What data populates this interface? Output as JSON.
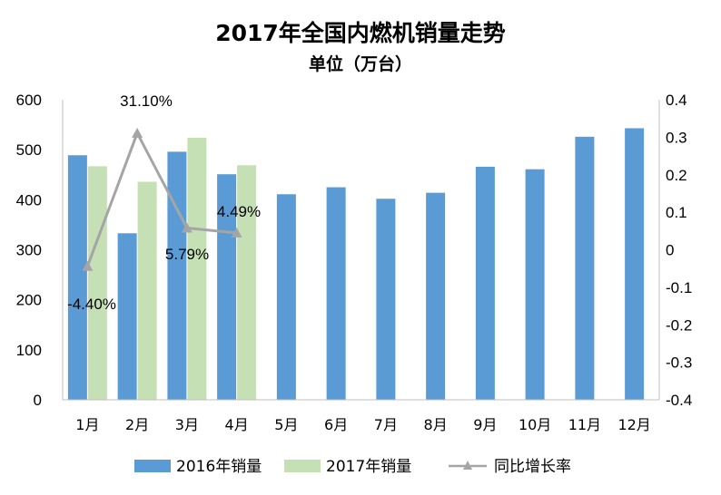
{
  "chart_data": {
    "type": "bar",
    "title": "2017年全国内燃机销量走势",
    "subtitle": "单位（万台）",
    "categories": [
      "1月",
      "2月",
      "3月",
      "4月",
      "5月",
      "6月",
      "7月",
      "8月",
      "9月",
      "10月",
      "11月",
      "12月"
    ],
    "series": [
      {
        "name": "2016年销量",
        "type": "bar",
        "axis": "left",
        "color": "#5B9BD5",
        "values": [
          489,
          333,
          496,
          451,
          411,
          425,
          402,
          414,
          466,
          461,
          526,
          543
        ]
      },
      {
        "name": "2017年销量",
        "type": "bar",
        "axis": "left",
        "color": "#C5E0B4",
        "values": [
          467,
          436,
          524,
          469,
          null,
          null,
          null,
          null,
          null,
          null,
          null,
          null
        ]
      },
      {
        "name": "同比增长率",
        "type": "line",
        "axis": "right",
        "color": "#A5A5A5",
        "marker": "triangle",
        "values": [
          -0.044,
          0.311,
          0.0579,
          0.0449,
          null,
          null,
          null,
          null,
          null,
          null,
          null,
          null
        ]
      }
    ],
    "data_labels": [
      "-4.40%",
      "31.10%",
      "5.79%",
      "4.49%"
    ],
    "y_left": {
      "min": 0,
      "max": 600,
      "step": 100,
      "ticks": [
        "0",
        "100",
        "200",
        "300",
        "400",
        "500",
        "600"
      ]
    },
    "y_right": {
      "min": -0.4,
      "max": 0.4,
      "step": 0.1,
      "ticks": [
        "-0.4",
        "-0.3",
        "-0.2",
        "-0.1",
        "0",
        "0.1",
        "0.2",
        "0.3",
        "0.4"
      ]
    },
    "grid": false,
    "legend_position": "bottom"
  }
}
